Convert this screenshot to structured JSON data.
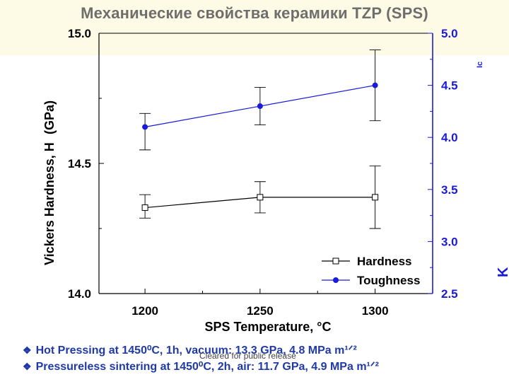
{
  "title": "Механические свойства керамики TZP (SPS)",
  "watermark": "Cleared for public release",
  "bullets": [
    {
      "icon": "diamond-bullet-icon",
      "text": "Hot Pressing at 1450⁰C, 1h, vacuum: 13.3 GPa, 4.8 MPa m¹ᐟ²"
    },
    {
      "icon": "diamond-bullet-icon",
      "text": "Pressureless sintering at 1450⁰C, 2h, air: 11.7 GPa, 4.9 MPa m¹ᐟ²"
    }
  ],
  "chart_data": {
    "type": "line",
    "xlabel": "SPS Temperature, °C",
    "x": [
      1200,
      1250,
      1300
    ],
    "x_ticks": [
      "1200",
      "1250",
      "1300"
    ],
    "xlim": [
      1180,
      1325
    ],
    "y_left": {
      "label_fragments": [
        "Vickers Hardness, H",
        "(GPa)"
      ],
      "lim": [
        14.0,
        15.0
      ],
      "ticks": [
        "14.0",
        "14.5",
        "15.0"
      ]
    },
    "y_right": {
      "label_fragments": [
        "K",
        "Ic"
      ],
      "lim": [
        2.5,
        5.0
      ],
      "ticks": [
        "2.5",
        "3.0",
        "3.5",
        "4.0",
        "4.5",
        "5.0"
      ],
      "color": "#1a1adb"
    },
    "series": [
      {
        "name": "Hardness",
        "axis": "left",
        "marker": "open-square",
        "color": "#000000",
        "values": [
          14.33,
          14.37,
          14.37
        ],
        "err_low": [
          14.29,
          14.31,
          14.25
        ],
        "err_high": [
          14.38,
          14.43,
          14.49
        ]
      },
      {
        "name": "Toughness",
        "axis": "right",
        "marker": "filled-circle",
        "color": "#1a1adb",
        "values": [
          4.1,
          4.3,
          4.5
        ],
        "err_low": [
          3.88,
          4.12,
          4.16
        ],
        "err_high": [
          4.23,
          4.48,
          4.84
        ]
      }
    ],
    "legend": "bottom-right",
    "grid": false
  }
}
